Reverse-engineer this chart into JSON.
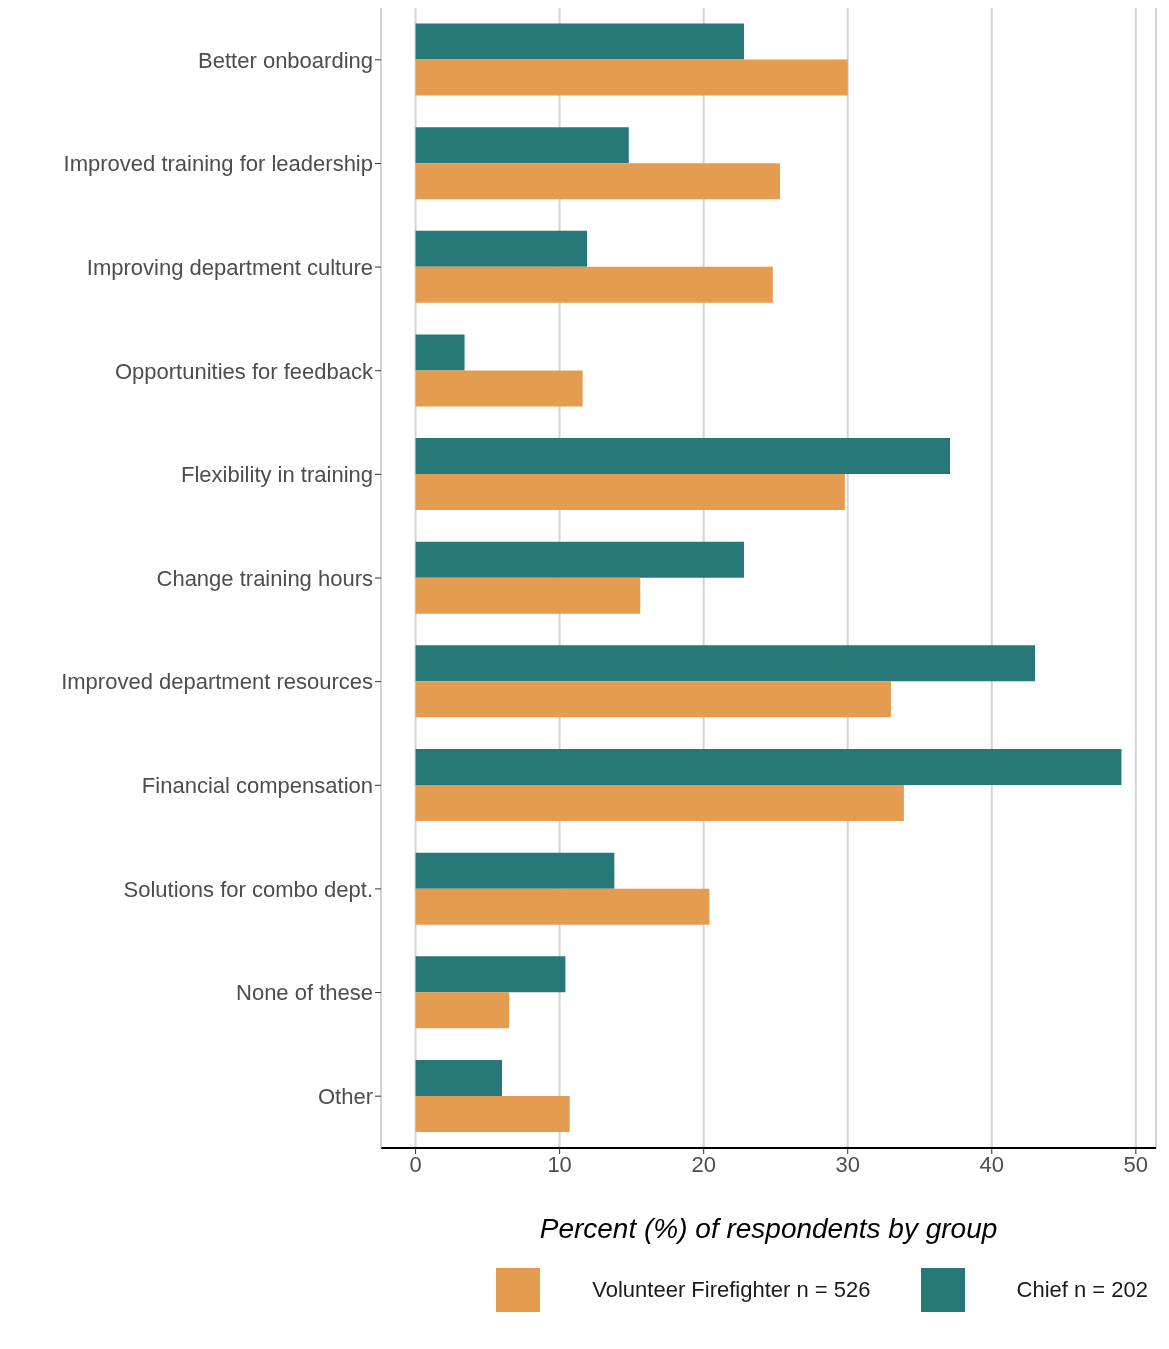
{
  "chart_data": {
    "type": "bar",
    "orientation": "horizontal",
    "xlabel": "Percent (%) of respondents by group",
    "categories": [
      "Better onboarding",
      "Improved training for leadership",
      "Improving department culture",
      "Opportunities for feedback",
      "Flexibility in training",
      "Change training hours",
      "Improved department resources",
      "Financial compensation",
      "Solutions for combo dept.",
      "None of these",
      "Other"
    ],
    "series": [
      {
        "name": "Volunteer Firefighter n = 526",
        "color": "#e39c50",
        "values": [
          30.0,
          25.3,
          24.8,
          11.6,
          29.8,
          15.6,
          33.0,
          33.9,
          20.4,
          6.5,
          10.7
        ]
      },
      {
        "name": "Chief n = 202",
        "color": "#267777",
        "values": [
          22.8,
          14.8,
          11.9,
          3.4,
          37.1,
          22.8,
          43.0,
          49.0,
          13.8,
          10.4,
          6.0
        ]
      }
    ],
    "xlim": [
      -2.4,
      51.4
    ],
    "xticks": [
      0,
      10,
      20,
      30,
      40,
      50
    ],
    "grid": "x",
    "legend": "bottom"
  }
}
